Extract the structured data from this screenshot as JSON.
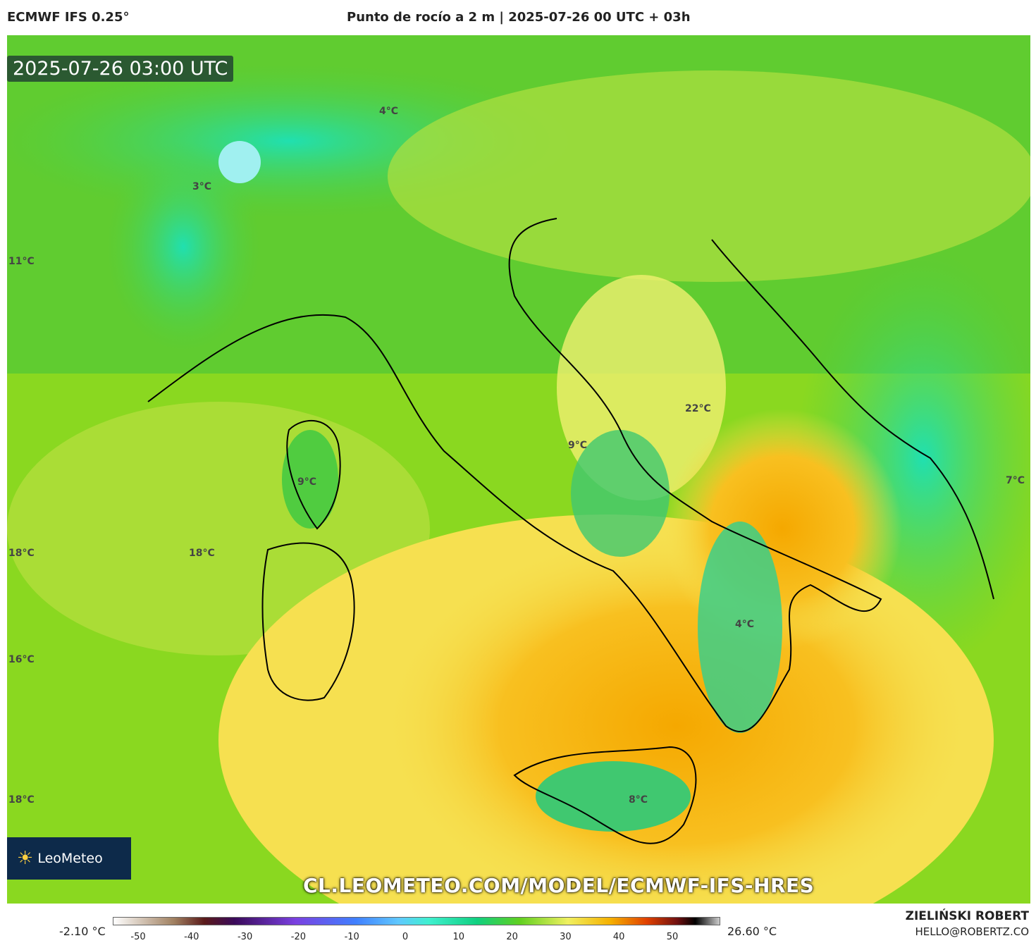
{
  "header": {
    "model": "ECMWF IFS 0.25°",
    "title": "Punto de rocío a 2 m | 2025-07-26 00 UTC + 03h"
  },
  "map": {
    "timestamp": "2025-07-26 03:00 UTC",
    "labels": [
      "4°C",
      "3°C",
      "11°C",
      "9°C",
      "22°C",
      "9°C",
      "7°C",
      "18°C",
      "18°C",
      "4°C",
      "16°C",
      "18°C",
      "8°C"
    ],
    "url": "CL.LEOMETEO.COM/MODEL/ECMWF-IFS-HRES",
    "logo": "LeoMeteo"
  },
  "colorbar": {
    "min_label": "-2.10 °C",
    "max_label": "26.60 °C",
    "ticks": [
      -50,
      -40,
      -30,
      -20,
      -10,
      0,
      10,
      20,
      30,
      40,
      50
    ]
  },
  "footer": {
    "author": "ZIELIŃSKI ROBERT",
    "email": "HELLO@ROBERTZ.CO"
  }
}
